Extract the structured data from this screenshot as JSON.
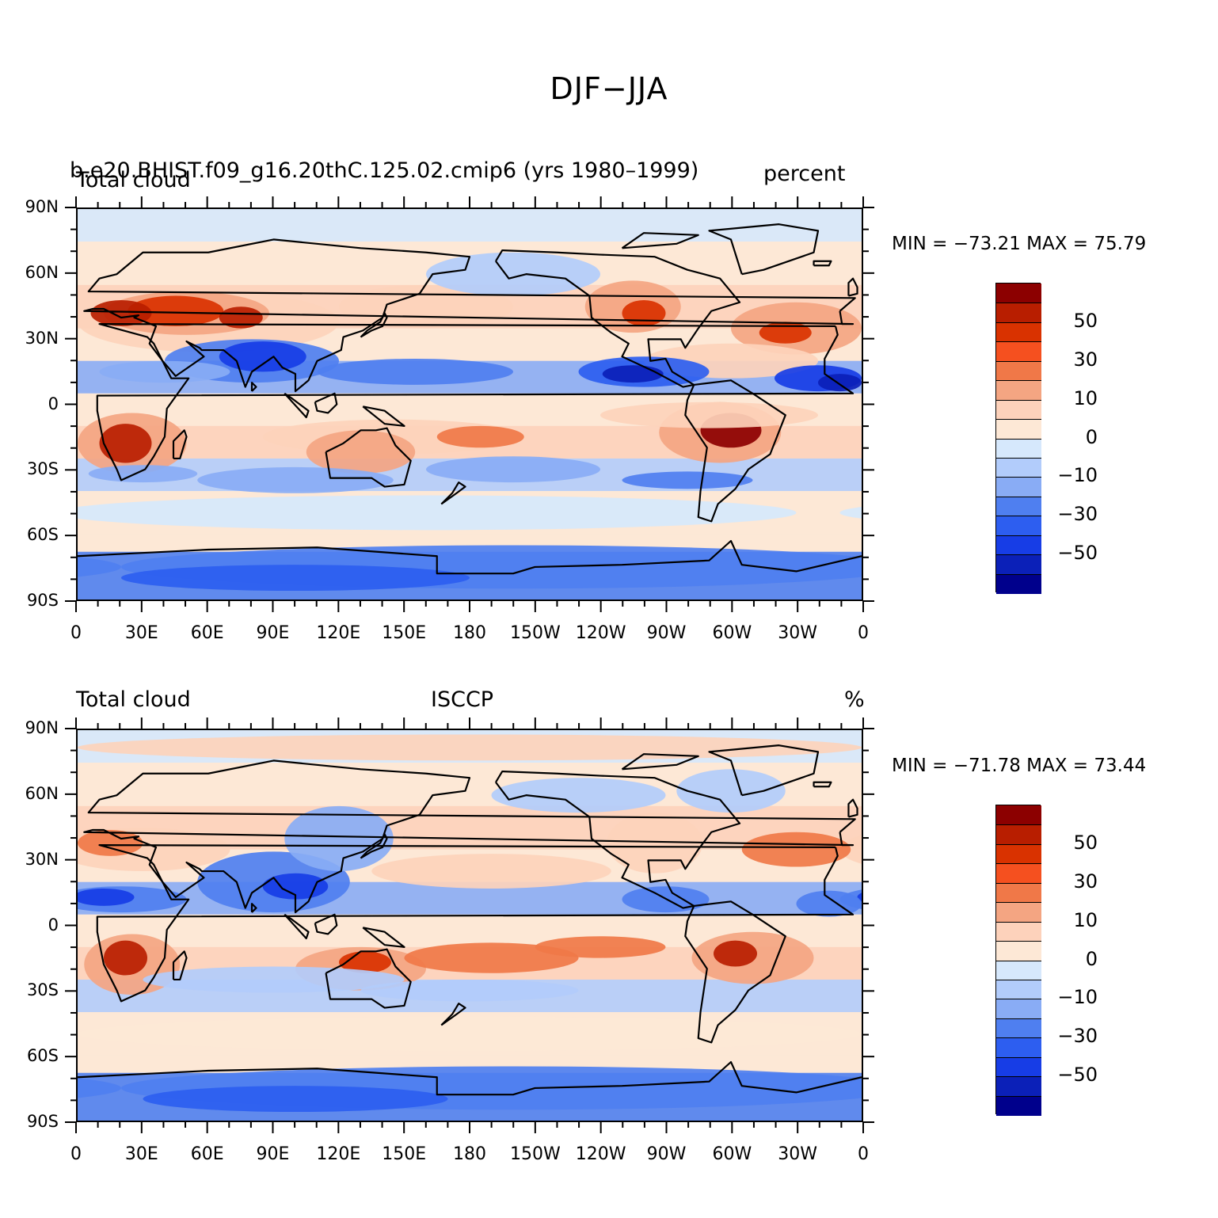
{
  "figure_title": "DJF−JJA",
  "colorbar_colors": [
    "#8c0000",
    "#b81e00",
    "#d93200",
    "#f5501f",
    "#f07848",
    "#f4a582",
    "#fdd2bb",
    "#fde8d6",
    "#d6e8fc",
    "#b2ccfb",
    "#89acf5",
    "#4f7ff0",
    "#2d5ef0",
    "#173de6",
    "#0b20b8",
    "#00008c"
  ],
  "coast_color": "#000000",
  "panels": [
    {
      "id": "model",
      "left_label": "Total cloud",
      "center_label": "b.e20.BHIST.f09_g16.20thC.125.02.cmip6 (yrs 1980–1999)",
      "right_label": "percent",
      "minmax": "MIN = −73.21 MAX =  75.79",
      "min": -73.21,
      "max": 75.79
    },
    {
      "id": "obs",
      "left_label": "Total cloud",
      "center_label": "ISCCP",
      "right_label": "%",
      "minmax": "MIN = −71.78 MAX =  73.44",
      "min": -71.78,
      "max": 73.44
    }
  ],
  "lat_labels": [
    "90N",
    "60N",
    "30N",
    "0",
    "30S",
    "60S",
    "90S"
  ],
  "lon_labels": [
    "0",
    "30E",
    "60E",
    "90E",
    "120E",
    "150E",
    "180",
    "150W",
    "120W",
    "90W",
    "60W",
    "30W",
    "0"
  ],
  "colorbar_labels": [
    "50",
    "30",
    "10",
    "0",
    "−10",
    "−30",
    "−50"
  ]
}
